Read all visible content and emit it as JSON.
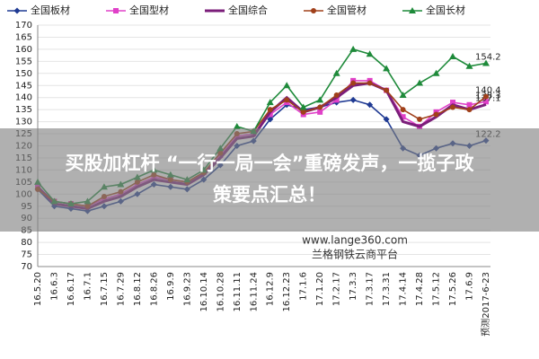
{
  "chart_data": {
    "type": "line",
    "categories": [
      "16.5.20",
      "16.6.3",
      "16.6.17",
      "16.7.1",
      "16.7.15",
      "16.7.29",
      "16.8.12",
      "16.8.26",
      "16.9.9",
      "16.9.23",
      "16.10.14",
      "16.10.28",
      "16.11.11",
      "16.11.24",
      "16.12.9",
      "16.12.23",
      "17.1.6",
      "17.1.20",
      "17.2.17",
      "17.3.3",
      "17.3.17",
      "17.3.31",
      "17.4.14",
      "17.4.28",
      "17.5.12",
      "17.5.26",
      "17.6.9",
      "预测2017-6-23"
    ],
    "series": [
      {
        "name": "全国板材",
        "color": "#1f3a93",
        "marker": "diamond",
        "values": [
          102,
          95,
          94,
          93,
          95,
          97,
          100,
          104,
          103,
          102,
          106,
          112,
          120,
          122,
          131,
          137,
          135,
          136,
          138,
          139,
          137,
          131,
          119,
          116,
          119,
          121,
          120,
          122.2
        ]
      },
      {
        "name": "全国型材",
        "color": "#e040c8",
        "marker": "square",
        "values": [
          103,
          97,
          96,
          95,
          98,
          100,
          104,
          107,
          106,
          105,
          109,
          116,
          124,
          125,
          133,
          138,
          133,
          134,
          139,
          147,
          147,
          143,
          132,
          128,
          134,
          138,
          137,
          138.3
        ]
      },
      {
        "name": "全国综合",
        "color": "#7b1e7a",
        "marker": "none",
        "values": [
          103,
          96,
          95,
          94,
          97,
          99,
          103,
          106,
          105,
          104,
          108,
          115,
          123,
          124,
          134,
          140,
          134,
          136,
          140,
          145,
          146,
          143,
          130,
          128,
          132,
          137,
          135,
          137.1
        ]
      },
      {
        "name": "全国管材",
        "color": "#a0401a",
        "marker": "circle",
        "values": [
          102,
          97,
          96,
          95,
          99,
          101,
          105,
          108,
          106,
          105,
          109,
          117,
          125,
          126,
          135,
          139,
          134,
          136,
          141,
          146,
          146,
          143,
          135,
          131,
          133,
          136,
          135,
          140.4
        ]
      },
      {
        "name": "全国长材",
        "color": "#1e8a3a",
        "marker": "triangle",
        "values": [
          105,
          97,
          96,
          97,
          103,
          104,
          107,
          110,
          108,
          106,
          110,
          119,
          128,
          126,
          138,
          145,
          136,
          139,
          150,
          160,
          158,
          152,
          141,
          146,
          150,
          157,
          153,
          154.2
        ]
      }
    ],
    "ylim": [
      70,
      170
    ],
    "yticks": [
      70,
      75,
      80,
      85,
      90,
      95,
      100,
      105,
      110,
      115,
      120,
      125,
      130,
      135,
      140,
      145,
      150,
      155,
      160,
      165,
      170
    ],
    "grid": true
  },
  "overlay": {
    "headline_line1": "买股加杠杆 “一行一局一会”重磅发声，一揽子政",
    "headline_line2": "策要点汇总！",
    "watermark_url": "www.lange360.com",
    "watermark_name": "兰格钢铁云商平台"
  }
}
